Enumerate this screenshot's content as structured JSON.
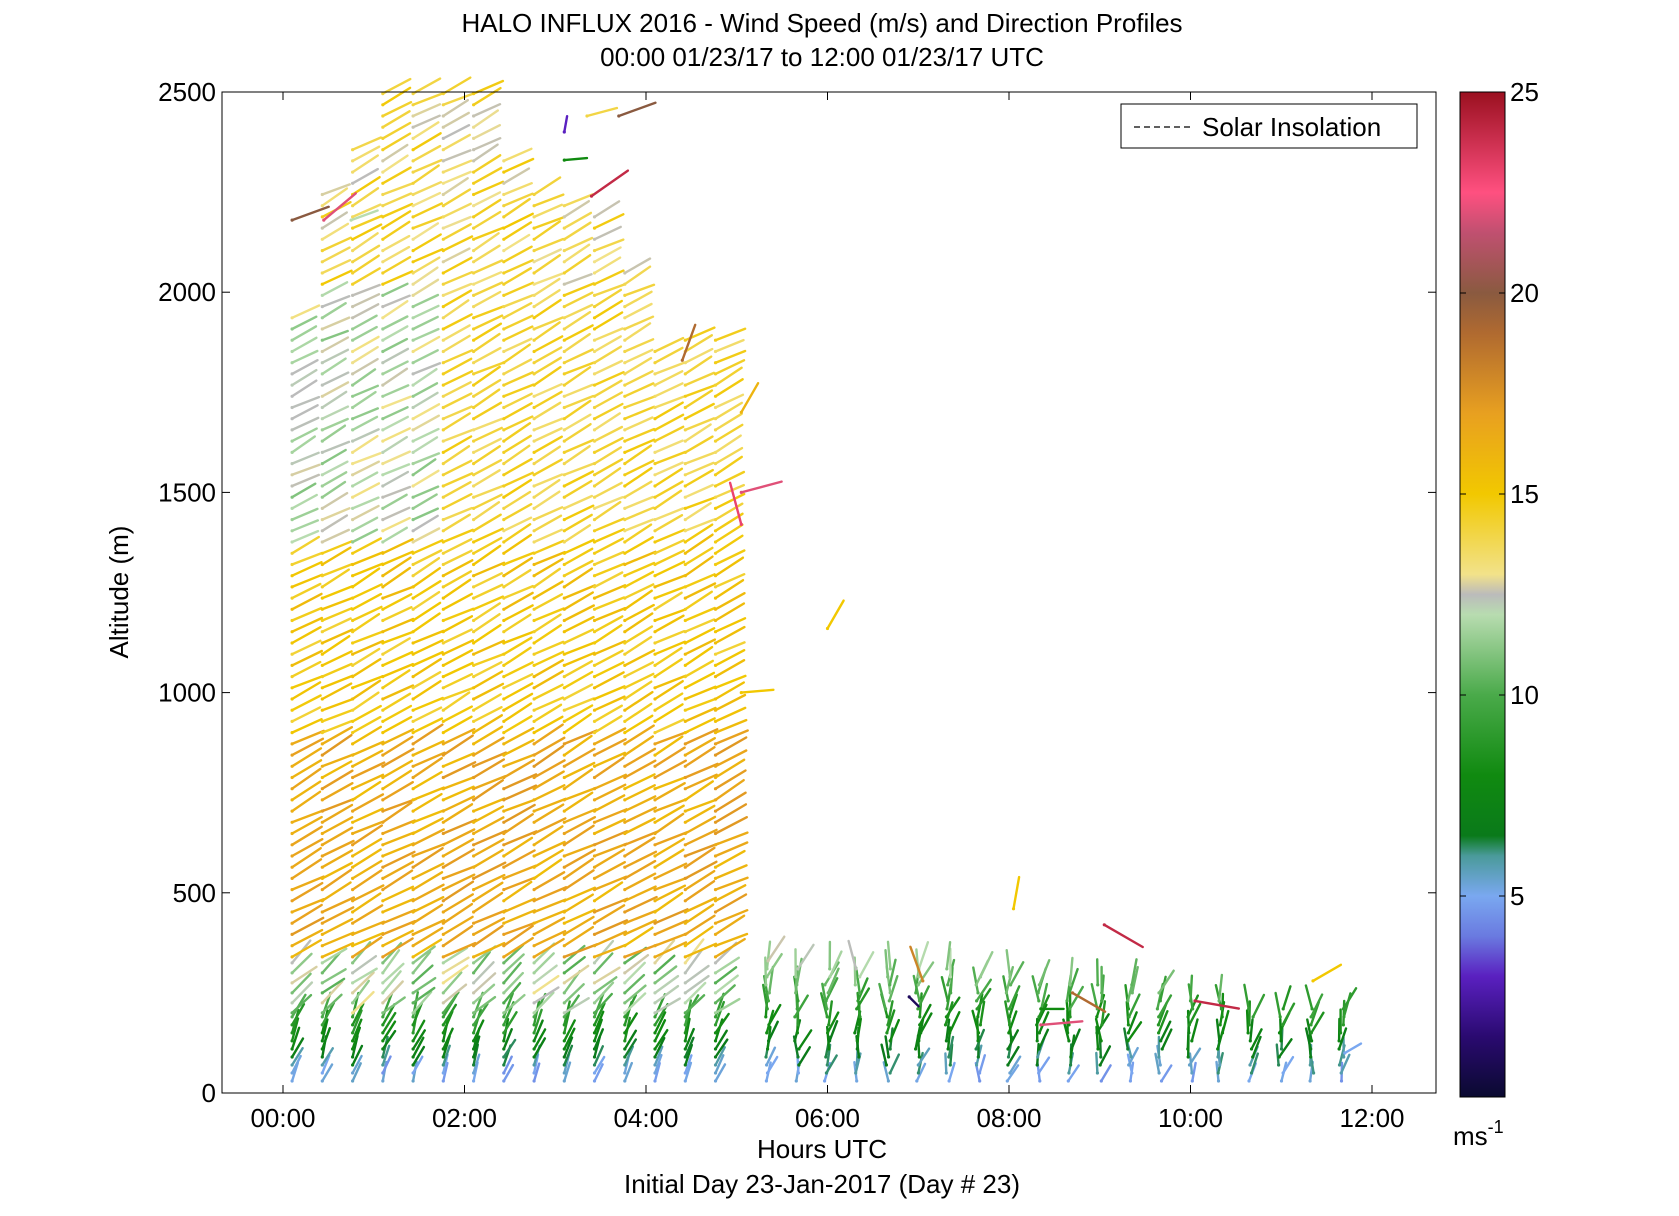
{
  "chart_data": {
    "type": "wind-barb-profile",
    "title": "HALO INFLUX 2016 - Wind Speed (m/s) and Direction Profiles",
    "subtitle": "00:00 01/23/17 to 12:00 01/23/17  UTC",
    "xlabel": "Hours UTC",
    "footer": "Initial Day 23-Jan-2017 (Day # 23)",
    "ylabel": "Altitude (m)",
    "xlim": [
      0,
      12
    ],
    "ylim": [
      0,
      2500
    ],
    "x_ticks": [
      {
        "value": 0,
        "label": "00:00"
      },
      {
        "value": 2,
        "label": "02:00"
      },
      {
        "value": 4,
        "label": "04:00"
      },
      {
        "value": 6,
        "label": "06:00"
      },
      {
        "value": 8,
        "label": "08:00"
      },
      {
        "value": 10,
        "label": "10:00"
      },
      {
        "value": 12,
        "label": "12:00"
      }
    ],
    "y_ticks": [
      {
        "value": 0,
        "label": "0"
      },
      {
        "value": 500,
        "label": "500"
      },
      {
        "value": 1000,
        "label": "1000"
      },
      {
        "value": 1500,
        "label": "1500"
      },
      {
        "value": 2000,
        "label": "2000"
      },
      {
        "value": 2500,
        "label": "2500"
      }
    ],
    "legend": {
      "position": "top-right",
      "entries": [
        {
          "label": "Solar Insolation",
          "style": "dashed",
          "color": "#000000"
        }
      ]
    },
    "colorbar": {
      "range": [
        0,
        25
      ],
      "unit_label": "ms",
      "unit_exponent": "-1",
      "ticks": [
        {
          "value": 5,
          "label": "5"
        },
        {
          "value": 10,
          "label": "10"
        },
        {
          "value": 15,
          "label": "15"
        },
        {
          "value": 20,
          "label": "20"
        },
        {
          "value": 25,
          "label": "25"
        }
      ],
      "stops": [
        {
          "value": 0,
          "color": "#0a0a30"
        },
        {
          "value": 1.5,
          "color": "#2a0a70"
        },
        {
          "value": 3,
          "color": "#5a20c0"
        },
        {
          "value": 4,
          "color": "#6a7ae0"
        },
        {
          "value": 5,
          "color": "#7aa8f0"
        },
        {
          "value": 6,
          "color": "#4a9a9a"
        },
        {
          "value": 6.5,
          "color": "#0a7a1a"
        },
        {
          "value": 8,
          "color": "#108a10"
        },
        {
          "value": 10,
          "color": "#4aaa4a"
        },
        {
          "value": 12,
          "color": "#b8dcb0"
        },
        {
          "value": 12.5,
          "color": "#bbbbbb"
        },
        {
          "value": 13,
          "color": "#f2e28a"
        },
        {
          "value": 15,
          "color": "#f2c800"
        },
        {
          "value": 17,
          "color": "#e8a020"
        },
        {
          "value": 19,
          "color": "#b06a30"
        },
        {
          "value": 20,
          "color": "#8a5a40"
        },
        {
          "value": 21.5,
          "color": "#c05070"
        },
        {
          "value": 22.5,
          "color": "#ff5080"
        },
        {
          "value": 25,
          "color": "#9a1020"
        }
      ]
    },
    "profiles": {
      "dense_region": {
        "times_start": 0.1,
        "times_end": 5.0,
        "time_step": 0.3333,
        "low_levels": {
          "alt_start": 30,
          "alt_end": 200,
          "alt_step": 20,
          "speed_range": [
            5,
            10
          ],
          "direction_deg_from": [
            190,
            215
          ]
        },
        "transition_levels": {
          "alt_start": 200,
          "alt_end": 340,
          "alt_step": 25,
          "speed_range": [
            10,
            13
          ]
        },
        "upper_levels": {
          "alt_start": 340,
          "alt_end": 2500,
          "alt_step": 28,
          "speed_range": [
            13,
            17
          ],
          "direction_deg_from": [
            235,
            250
          ]
        },
        "column_tops_m": [
          1960,
          2250,
          2380,
          2500,
          2500,
          2500,
          2500,
          2340,
          2270,
          2220,
          2210,
          2070,
          1860,
          1900,
          1900
        ]
      },
      "sparse_region": {
        "times_start": 5.33,
        "times_end": 11.7,
        "time_step": 0.3333,
        "alt_start": 30,
        "alt_end": 320,
        "alt_step": 20,
        "speed_range": [
          5,
          12
        ],
        "direction_deg_from": [
          165,
          215
        ]
      },
      "isolated_vectors": [
        {
          "t": 0.1,
          "alt": 2180,
          "speed": 20,
          "dir": 250
        },
        {
          "t": 0.45,
          "alt": 2180,
          "speed": 22,
          "dir": 230
        },
        {
          "t": 0.75,
          "alt": 2180,
          "speed": 12,
          "dir": 250
        },
        {
          "t": 3.1,
          "alt": 2400,
          "speed": 3,
          "dir": 190
        },
        {
          "t": 3.1,
          "alt": 2330,
          "speed": 8,
          "dir": 265
        },
        {
          "t": 3.35,
          "alt": 2440,
          "speed": 14,
          "dir": 255
        },
        {
          "t": 3.7,
          "alt": 2440,
          "speed": 20,
          "dir": 250
        },
        {
          "t": 3.4,
          "alt": 2240,
          "speed": 24,
          "dir": 235
        },
        {
          "t": 4.4,
          "alt": 1830,
          "speed": 19,
          "dir": 200
        },
        {
          "t": 5.05,
          "alt": 1700,
          "speed": 16,
          "dir": 210
        },
        {
          "t": 5.05,
          "alt": 1500,
          "speed": 22,
          "dir": 255
        },
        {
          "t": 5.05,
          "alt": 1420,
          "speed": 23,
          "dir": 165
        },
        {
          "t": 6.0,
          "alt": 1160,
          "speed": 15,
          "dir": 210
        },
        {
          "t": 5.05,
          "alt": 1000,
          "speed": 15,
          "dir": 265
        },
        {
          "t": 8.05,
          "alt": 460,
          "speed": 15,
          "dir": 190
        },
        {
          "t": 9.05,
          "alt": 420,
          "speed": 24,
          "dir": 300
        },
        {
          "t": 6.9,
          "alt": 240,
          "speed": 1,
          "dir": 315
        },
        {
          "t": 7.05,
          "alt": 280,
          "speed": 18,
          "dir": 160
        },
        {
          "t": 8.7,
          "alt": 250,
          "speed": 19,
          "dir": 300
        },
        {
          "t": 8.35,
          "alt": 210,
          "speed": 8,
          "dir": 270
        },
        {
          "t": 8.35,
          "alt": 170,
          "speed": 22,
          "dir": 265
        },
        {
          "t": 10.05,
          "alt": 230,
          "speed": 24,
          "dir": 280
        },
        {
          "t": 11.35,
          "alt": 280,
          "speed": 15,
          "dir": 240
        },
        {
          "t": 11.7,
          "alt": 100,
          "speed": 5,
          "dir": 240
        }
      ]
    }
  }
}
